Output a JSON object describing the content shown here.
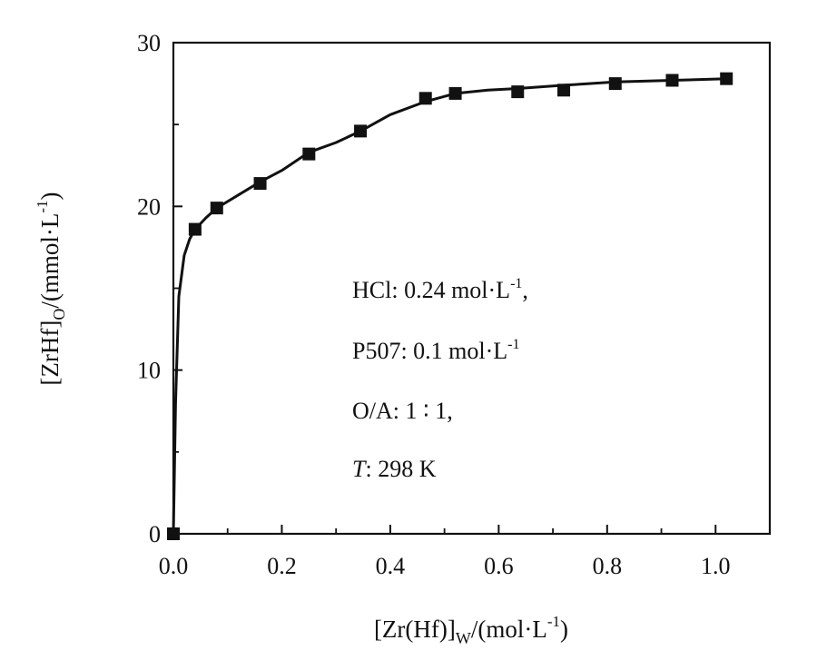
{
  "chart_data": {
    "type": "scatter",
    "title": "",
    "xlabel": {
      "main": "[Zr(Hf)]",
      "sub": "W",
      "unit_prefix": "/(mol·L",
      "sup": "-1",
      "unit_suffix": ")"
    },
    "ylabel": {
      "main": "[ZrHf]",
      "sub": "O",
      "unit_prefix": "/(mmol·L",
      "sup": "-1",
      "unit_suffix": ")"
    },
    "xlim": [
      0,
      1.1
    ],
    "ylim": [
      0,
      30
    ],
    "x_ticks": [
      0.0,
      0.2,
      0.4,
      0.6,
      0.8,
      1.0
    ],
    "x_tick_labels": [
      "0.0",
      "0.2",
      "0.4",
      "0.6",
      "0.8",
      "1.0"
    ],
    "y_ticks": [
      0,
      10,
      20,
      30
    ],
    "y_tick_labels": [
      "0",
      "10",
      "20",
      "30"
    ],
    "grid": false,
    "series": [
      {
        "marker": "square",
        "color": "#111111",
        "x": [
          0.0,
          0.04,
          0.08,
          0.16,
          0.25,
          0.345,
          0.465,
          0.52,
          0.635,
          0.72,
          0.815,
          0.92,
          1.02
        ],
        "y": [
          0.0,
          18.6,
          19.9,
          21.4,
          23.2,
          24.6,
          26.6,
          26.9,
          27.0,
          27.1,
          27.5,
          27.7,
          27.8
        ]
      }
    ],
    "fit_curve": {
      "color": "#111111",
      "x": [
        0.0,
        0.004,
        0.01,
        0.02,
        0.03,
        0.04,
        0.06,
        0.08,
        0.12,
        0.16,
        0.2,
        0.25,
        0.3,
        0.345,
        0.4,
        0.465,
        0.52,
        0.58,
        0.635,
        0.72,
        0.815,
        0.92,
        1.02
      ],
      "y": [
        0.0,
        8.0,
        14.5,
        17.0,
        18.0,
        18.6,
        19.3,
        19.9,
        20.7,
        21.5,
        22.2,
        23.3,
        23.9,
        24.6,
        25.6,
        26.4,
        26.9,
        27.1,
        27.2,
        27.4,
        27.6,
        27.7,
        27.8
      ]
    },
    "annotations": [
      {
        "main": "HCl: 0.24 mol·L",
        "sup": "-1",
        "suffix": ","
      },
      {
        "main": "P507: 0.1 mol·L",
        "sup": "-1",
        "suffix": ""
      },
      {
        "main": "O/A: 1 ∶ 1,",
        "sup": "",
        "suffix": ""
      },
      {
        "italic": "T",
        "main": ": 298 K",
        "sup": "",
        "suffix": ""
      }
    ]
  }
}
